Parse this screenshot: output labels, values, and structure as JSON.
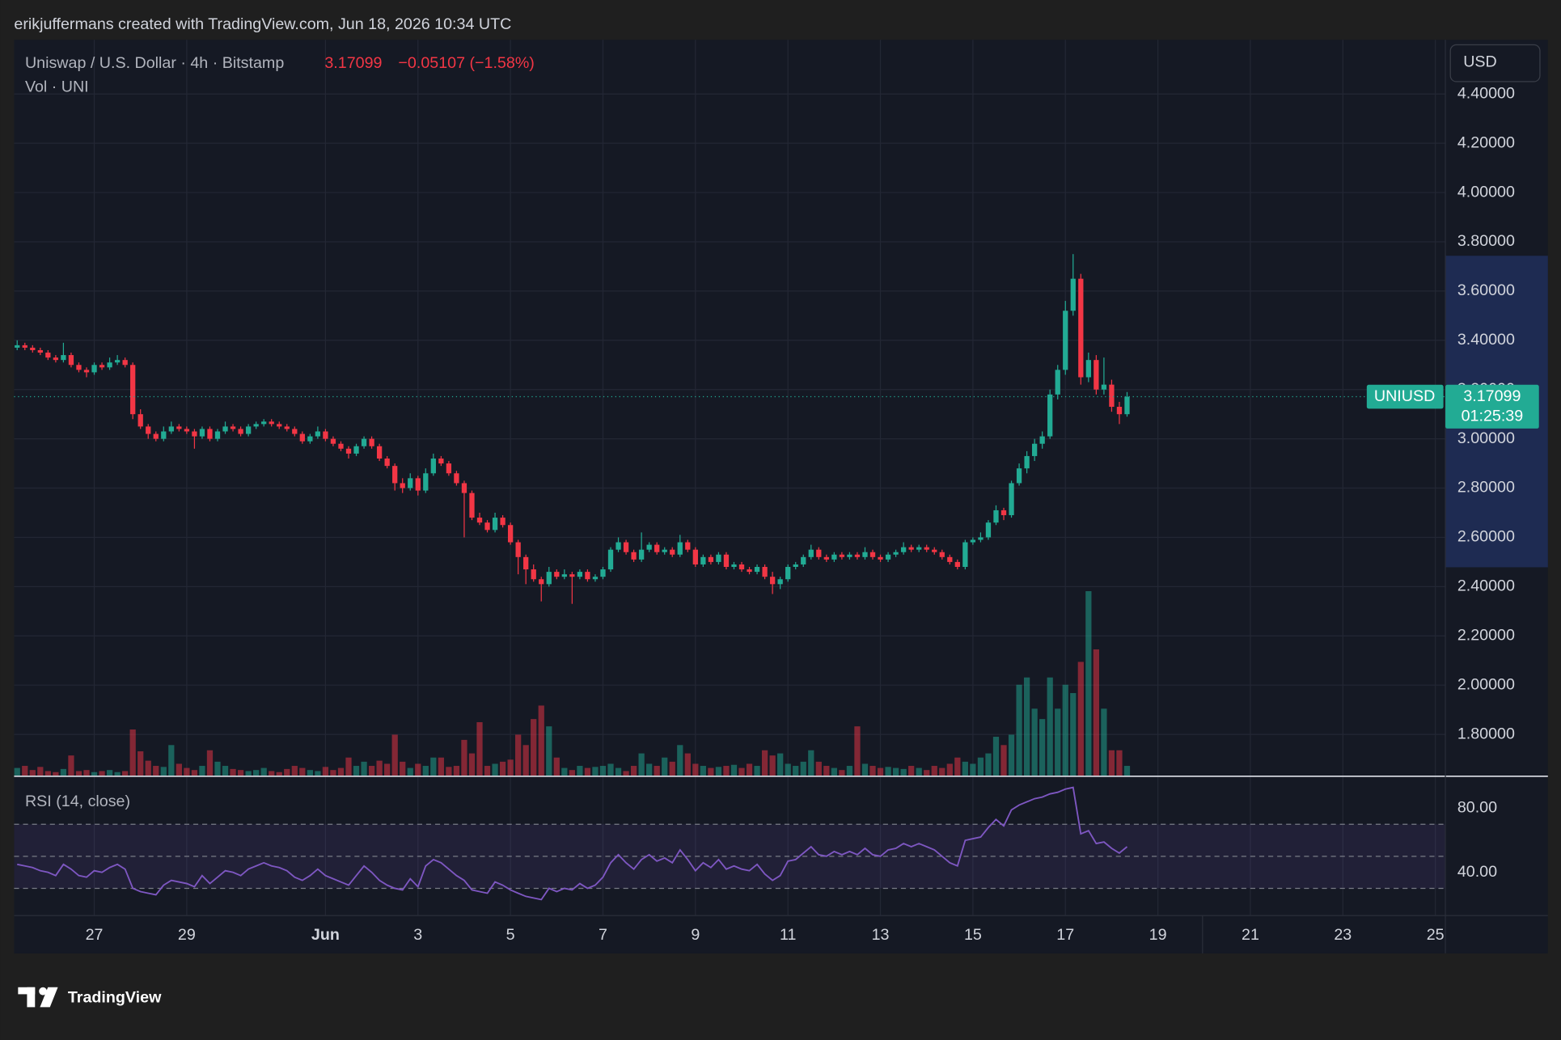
{
  "header": "erikjuffermans created with TradingView.com, Jun 18, 2026 10:34 UTC",
  "chart_data": {
    "type": "candlestick",
    "title": "Uniswap / U.S. Dollar · 4h · Bitstamp",
    "change_label": "−0.05107 (−1.58%)",
    "volume_title": "Vol · UNI",
    "currency": "USD",
    "symbol": "UNIUSD",
    "countdown": "01:25:39",
    "up_color": "#22ab94",
    "down_color": "#f23645",
    "grid": true,
    "ylim": [
      1.63,
      4.62
    ],
    "yticks": [
      {
        "value": 4.4,
        "label": "4.40000"
      },
      {
        "value": 4.2,
        "label": "4.20000"
      },
      {
        "value": 4.0,
        "label": "4.00000"
      },
      {
        "value": 3.8,
        "label": "3.80000"
      },
      {
        "value": 3.6,
        "label": "3.60000"
      },
      {
        "value": 3.4,
        "label": "3.40000"
      },
      {
        "value": 3.2,
        "label": "3.20000"
      },
      {
        "value": 3.0,
        "label": "3.00000"
      },
      {
        "value": 2.8,
        "label": "2.80000"
      },
      {
        "value": 2.6,
        "label": "2.60000"
      },
      {
        "value": 2.4,
        "label": "2.40000"
      },
      {
        "value": 2.2,
        "label": "2.20000"
      },
      {
        "value": 2.0,
        "label": "2.00000"
      },
      {
        "value": 1.8,
        "label": "1.80000"
      }
    ],
    "xlim": [
      -0.4,
      185.3
    ],
    "xticks": [
      {
        "value": 10,
        "label": "27"
      },
      {
        "value": 22,
        "label": "29"
      },
      {
        "value": 40,
        "label": "Jun"
      },
      {
        "value": 52,
        "label": "3"
      },
      {
        "value": 64,
        "label": "5"
      },
      {
        "value": 76,
        "label": "7"
      },
      {
        "value": 88,
        "label": "9"
      },
      {
        "value": 100,
        "label": "11"
      },
      {
        "value": 112,
        "label": "13"
      },
      {
        "value": 124,
        "label": "15"
      },
      {
        "value": 136,
        "label": "17"
      },
      {
        "value": 148,
        "label": "19"
      },
      {
        "value": 160,
        "label": "21"
      },
      {
        "value": 172,
        "label": "23"
      },
      {
        "value": 184,
        "label": "25"
      }
    ],
    "candles": [
      [
        3.37,
        3.4,
        3.36,
        3.38
      ],
      [
        3.38,
        3.39,
        3.36,
        3.37
      ],
      [
        3.37,
        3.38,
        3.35,
        3.36
      ],
      [
        3.36,
        3.37,
        3.34,
        3.35
      ],
      [
        3.35,
        3.36,
        3.32,
        3.33
      ],
      [
        3.33,
        3.34,
        3.31,
        3.32
      ],
      [
        3.32,
        3.39,
        3.31,
        3.34
      ],
      [
        3.34,
        3.35,
        3.29,
        3.3
      ],
      [
        3.3,
        3.31,
        3.27,
        3.28
      ],
      [
        3.28,
        3.29,
        3.25,
        3.27
      ],
      [
        3.27,
        3.31,
        3.26,
        3.3
      ],
      [
        3.3,
        3.31,
        3.28,
        3.29
      ],
      [
        3.29,
        3.33,
        3.28,
        3.31
      ],
      [
        3.31,
        3.34,
        3.3,
        3.32
      ],
      [
        3.32,
        3.33,
        3.29,
        3.3
      ],
      [
        3.3,
        3.31,
        3.08,
        3.1
      ],
      [
        3.1,
        3.12,
        3.04,
        3.05
      ],
      [
        3.05,
        3.06,
        3.0,
        3.02
      ],
      [
        3.02,
        3.03,
        2.99,
        3.0
      ],
      [
        3.0,
        3.05,
        2.99,
        3.03
      ],
      [
        3.03,
        3.07,
        3.02,
        3.05
      ],
      [
        3.05,
        3.06,
        3.03,
        3.04
      ],
      [
        3.04,
        3.05,
        3.02,
        3.03
      ],
      [
        3.03,
        3.04,
        2.96,
        3.01
      ],
      [
        3.01,
        3.05,
        3.0,
        3.04
      ],
      [
        3.04,
        3.05,
        2.99,
        3.0
      ],
      [
        3.0,
        3.04,
        2.99,
        3.03
      ],
      [
        3.03,
        3.07,
        3.02,
        3.05
      ],
      [
        3.05,
        3.06,
        3.03,
        3.04
      ],
      [
        3.04,
        3.05,
        3.01,
        3.02
      ],
      [
        3.02,
        3.06,
        3.01,
        3.05
      ],
      [
        3.05,
        3.07,
        3.04,
        3.06
      ],
      [
        3.06,
        3.08,
        3.05,
        3.07
      ],
      [
        3.07,
        3.08,
        3.05,
        3.06
      ],
      [
        3.06,
        3.07,
        3.04,
        3.05
      ],
      [
        3.05,
        3.06,
        3.03,
        3.04
      ],
      [
        3.04,
        3.05,
        3.01,
        3.02
      ],
      [
        3.02,
        3.03,
        2.98,
        2.99
      ],
      [
        2.99,
        3.02,
        2.98,
        3.01
      ],
      [
        3.01,
        3.05,
        3.0,
        3.03
      ],
      [
        3.03,
        3.04,
        2.99,
        3.0
      ],
      [
        3.0,
        3.01,
        2.97,
        2.98
      ],
      [
        2.98,
        2.99,
        2.95,
        2.96
      ],
      [
        2.96,
        2.97,
        2.92,
        2.94
      ],
      [
        2.94,
        2.98,
        2.93,
        2.97
      ],
      [
        2.97,
        3.01,
        2.96,
        3.0
      ],
      [
        3.0,
        3.01,
        2.96,
        2.97
      ],
      [
        2.97,
        2.98,
        2.91,
        2.92
      ],
      [
        2.92,
        2.93,
        2.88,
        2.89
      ],
      [
        2.89,
        2.9,
        2.79,
        2.82
      ],
      [
        2.82,
        2.84,
        2.78,
        2.8
      ],
      [
        2.8,
        2.86,
        2.79,
        2.84
      ],
      [
        2.84,
        2.85,
        2.77,
        2.79
      ],
      [
        2.79,
        2.88,
        2.78,
        2.86
      ],
      [
        2.86,
        2.94,
        2.85,
        2.92
      ],
      [
        2.92,
        2.93,
        2.89,
        2.9
      ],
      [
        2.9,
        2.91,
        2.85,
        2.86
      ],
      [
        2.86,
        2.87,
        2.81,
        2.82
      ],
      [
        2.82,
        2.83,
        2.6,
        2.78
      ],
      [
        2.78,
        2.79,
        2.67,
        2.68
      ],
      [
        2.68,
        2.7,
        2.65,
        2.66
      ],
      [
        2.66,
        2.67,
        2.62,
        2.63
      ],
      [
        2.63,
        2.7,
        2.62,
        2.68
      ],
      [
        2.68,
        2.69,
        2.64,
        2.65
      ],
      [
        2.65,
        2.66,
        2.57,
        2.58
      ],
      [
        2.58,
        2.59,
        2.45,
        2.52
      ],
      [
        2.52,
        2.53,
        2.41,
        2.47
      ],
      [
        2.47,
        2.49,
        2.42,
        2.43
      ],
      [
        2.43,
        2.44,
        2.34,
        2.41
      ],
      [
        2.41,
        2.48,
        2.4,
        2.46
      ],
      [
        2.46,
        2.47,
        2.43,
        2.44
      ],
      [
        2.44,
        2.47,
        2.43,
        2.45
      ],
      [
        2.45,
        2.46,
        2.33,
        2.44
      ],
      [
        2.44,
        2.47,
        2.43,
        2.46
      ],
      [
        2.46,
        2.47,
        2.42,
        2.43
      ],
      [
        2.43,
        2.45,
        2.42,
        2.44
      ],
      [
        2.44,
        2.48,
        2.43,
        2.47
      ],
      [
        2.47,
        2.56,
        2.46,
        2.55
      ],
      [
        2.55,
        2.6,
        2.54,
        2.58
      ],
      [
        2.58,
        2.59,
        2.53,
        2.54
      ],
      [
        2.54,
        2.55,
        2.5,
        2.51
      ],
      [
        2.51,
        2.62,
        2.5,
        2.55
      ],
      [
        2.55,
        2.58,
        2.54,
        2.57
      ],
      [
        2.57,
        2.58,
        2.53,
        2.54
      ],
      [
        2.54,
        2.56,
        2.53,
        2.55
      ],
      [
        2.55,
        2.56,
        2.52,
        2.53
      ],
      [
        2.53,
        2.61,
        2.52,
        2.58
      ],
      [
        2.58,
        2.59,
        2.54,
        2.55
      ],
      [
        2.55,
        2.56,
        2.48,
        2.49
      ],
      [
        2.49,
        2.53,
        2.48,
        2.52
      ],
      [
        2.52,
        2.53,
        2.49,
        2.5
      ],
      [
        2.5,
        2.54,
        2.49,
        2.53
      ],
      [
        2.53,
        2.54,
        2.47,
        2.48
      ],
      [
        2.48,
        2.5,
        2.47,
        2.49
      ],
      [
        2.49,
        2.5,
        2.46,
        2.47
      ],
      [
        2.47,
        2.48,
        2.45,
        2.46
      ],
      [
        2.46,
        2.49,
        2.45,
        2.48
      ],
      [
        2.48,
        2.49,
        2.43,
        2.44
      ],
      [
        2.44,
        2.46,
        2.37,
        2.41
      ],
      [
        2.41,
        2.44,
        2.39,
        2.43
      ],
      [
        2.43,
        2.49,
        2.42,
        2.48
      ],
      [
        2.48,
        2.5,
        2.47,
        2.49
      ],
      [
        2.49,
        2.53,
        2.48,
        2.52
      ],
      [
        2.52,
        2.57,
        2.51,
        2.55
      ],
      [
        2.55,
        2.56,
        2.51,
        2.52
      ],
      [
        2.52,
        2.53,
        2.5,
        2.51
      ],
      [
        2.51,
        2.54,
        2.5,
        2.53
      ],
      [
        2.53,
        2.54,
        2.51,
        2.52
      ],
      [
        2.52,
        2.54,
        2.51,
        2.53
      ],
      [
        2.53,
        2.54,
        2.51,
        2.52
      ],
      [
        2.52,
        2.56,
        2.51,
        2.54
      ],
      [
        2.54,
        2.55,
        2.51,
        2.52
      ],
      [
        2.52,
        2.53,
        2.5,
        2.51
      ],
      [
        2.51,
        2.54,
        2.5,
        2.53
      ],
      [
        2.53,
        2.55,
        2.52,
        2.54
      ],
      [
        2.54,
        2.58,
        2.53,
        2.56
      ],
      [
        2.56,
        2.57,
        2.54,
        2.55
      ],
      [
        2.55,
        2.57,
        2.54,
        2.56
      ],
      [
        2.56,
        2.57,
        2.54,
        2.55
      ],
      [
        2.55,
        2.56,
        2.53,
        2.54
      ],
      [
        2.54,
        2.55,
        2.51,
        2.52
      ],
      [
        2.52,
        2.53,
        2.49,
        2.5
      ],
      [
        2.5,
        2.51,
        2.47,
        2.48
      ],
      [
        2.48,
        2.59,
        2.47,
        2.58
      ],
      [
        2.58,
        2.6,
        2.57,
        2.59
      ],
      [
        2.59,
        2.62,
        2.58,
        2.6
      ],
      [
        2.6,
        2.67,
        2.59,
        2.66
      ],
      [
        2.66,
        2.73,
        2.65,
        2.71
      ],
      [
        2.71,
        2.72,
        2.67,
        2.69
      ],
      [
        2.69,
        2.83,
        2.68,
        2.82
      ],
      [
        2.82,
        2.9,
        2.81,
        2.88
      ],
      [
        2.88,
        2.95,
        2.86,
        2.93
      ],
      [
        2.93,
        3.0,
        2.91,
        2.98
      ],
      [
        2.98,
        3.03,
        2.96,
        3.01
      ],
      [
        3.01,
        3.2,
        3.0,
        3.18
      ],
      [
        3.18,
        3.3,
        3.16,
        3.28
      ],
      [
        3.28,
        3.56,
        3.26,
        3.52
      ],
      [
        3.52,
        3.75,
        3.5,
        3.65
      ],
      [
        3.65,
        3.67,
        3.22,
        3.25
      ],
      [
        3.25,
        3.35,
        3.23,
        3.32
      ],
      [
        3.32,
        3.34,
        3.18,
        3.2
      ],
      [
        3.2,
        3.33,
        3.18,
        3.22
      ],
      [
        3.22,
        3.24,
        3.11,
        3.13
      ],
      [
        3.13,
        3.15,
        3.06,
        3.1
      ],
      [
        3.1,
        3.19,
        3.09,
        3.17099
      ]
    ],
    "volumes": [
      8,
      10,
      6,
      9,
      5,
      4,
      7,
      20,
      5,
      6,
      4,
      5,
      6,
      4,
      5,
      45,
      24,
      15,
      10,
      9,
      30,
      12,
      8,
      6,
      10,
      25,
      14,
      10,
      7,
      6,
      5,
      6,
      8,
      5,
      4,
      7,
      10,
      8,
      6,
      5,
      9,
      6,
      8,
      18,
      10,
      14,
      10,
      15,
      12,
      40,
      14,
      8,
      12,
      10,
      18,
      18,
      9,
      10,
      35,
      22,
      52,
      10,
      12,
      14,
      16,
      40,
      30,
      55,
      68,
      48,
      18,
      8,
      6,
      10,
      8,
      9,
      10,
      12,
      8,
      5,
      10,
      22,
      12,
      10,
      18,
      14,
      30,
      22,
      12,
      10,
      8,
      9,
      10,
      11,
      8,
      12,
      10,
      25,
      20,
      22,
      12,
      10,
      14,
      25,
      14,
      10,
      8,
      6,
      10,
      48,
      12,
      10,
      8,
      9,
      8,
      7,
      10,
      8,
      6,
      10,
      8,
      12,
      18,
      14,
      12,
      18,
      22,
      38,
      30,
      40,
      88,
      95,
      65,
      55,
      95,
      65,
      88,
      80,
      110,
      178,
      122,
      65,
      25,
      25,
      10
    ],
    "rsi": {
      "title": "RSI (14, close)",
      "color": "#7e57c2",
      "ylim": [
        13,
        97.5
      ],
      "yticks": [
        {
          "value": 80,
          "label": "80.00"
        },
        {
          "value": 40,
          "label": "40.00"
        }
      ],
      "levels": [
        70,
        50,
        30
      ],
      "values": [
        45,
        44,
        43,
        41,
        40,
        38,
        45,
        42,
        38,
        37,
        41,
        40,
        43,
        45,
        42,
        30,
        28,
        27,
        26,
        32,
        35,
        34,
        33,
        31,
        38,
        33,
        37,
        41,
        40,
        38,
        42,
        44,
        46,
        44,
        43,
        41,
        37,
        35,
        38,
        42,
        38,
        36,
        34,
        32,
        38,
        44,
        40,
        35,
        32,
        30,
        29,
        36,
        31,
        44,
        48,
        46,
        42,
        38,
        35,
        29,
        28,
        27,
        34,
        32,
        29,
        27,
        25,
        24,
        23,
        30,
        28,
        30,
        29,
        33,
        30,
        32,
        37,
        46,
        51,
        46,
        42,
        48,
        51,
        47,
        49,
        46,
        54,
        48,
        41,
        46,
        43,
        48,
        42,
        44,
        42,
        41,
        45,
        39,
        35,
        38,
        47,
        48,
        52,
        56,
        51,
        50,
        53,
        51,
        53,
        51,
        55,
        51,
        50,
        54,
        55,
        58,
        56,
        58,
        56,
        54,
        50,
        46,
        44,
        60,
        61,
        62,
        68,
        73,
        69,
        79,
        82,
        84,
        86,
        87,
        89,
        90,
        92,
        93,
        64,
        66,
        58,
        59,
        55,
        52,
        56
      ]
    }
  },
  "footer": {
    "logo": "TradingView"
  }
}
